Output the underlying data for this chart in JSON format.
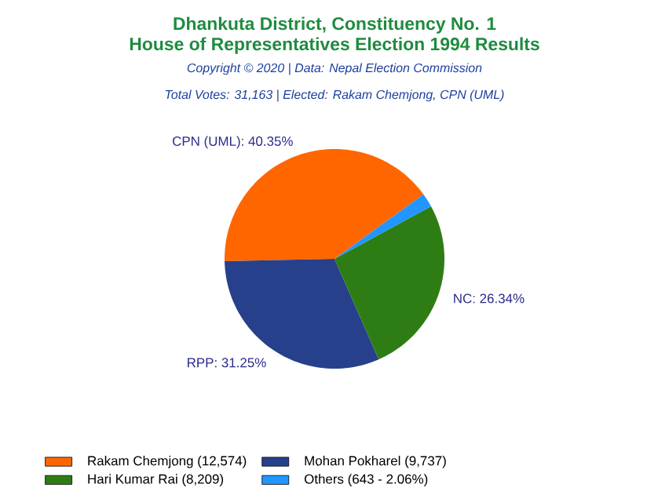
{
  "chart_data": {
    "type": "pie",
    "title": "Dhankuta District, Constituency No. 1",
    "subtitle": "House of Representatives Election 1994 Results",
    "annotations": [
      "Copyright © 2020 | Data: Nepal Election Commission",
      "Total Votes: 31,163 | Elected: Rakam Chemjong, CPN (UML)"
    ],
    "categories": [
      "Rakam Chemjong (12,574)",
      "Mohan Pokharel (9,737)",
      "Hari Kumar Rai (8,209)",
      "Others (643 - 2.06%)"
    ],
    "values": [
      40.35,
      31.25,
      26.34,
      2.06
    ],
    "colors": [
      "#ff6600",
      "#27408b",
      "#2e7d14",
      "#2196ff"
    ],
    "value_labels": [
      "CPN (UML): 40.35%",
      "RPP: 31.25%",
      "NC: 26.34%",
      null
    ],
    "legend": "bottom left"
  }
}
